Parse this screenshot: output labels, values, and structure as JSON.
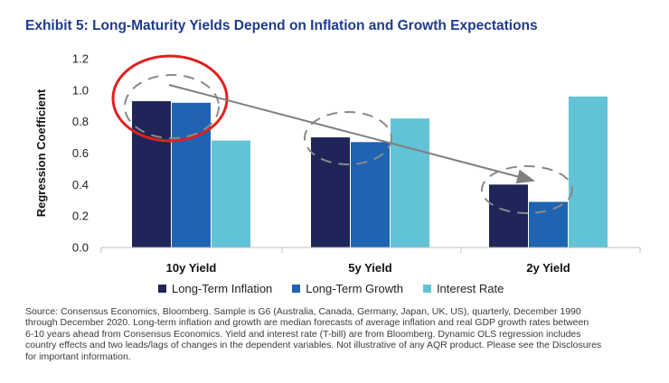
{
  "title": "Exhibit 5: Long-Maturity Yields Depend on Inflation and Growth Expectations",
  "chart_data": {
    "type": "bar",
    "categories": [
      "10y Yield",
      "5y Yield",
      "2y Yield"
    ],
    "series": [
      {
        "name": "Long-Term Inflation",
        "color": "#1f2559",
        "values": [
          0.93,
          0.7,
          0.4
        ]
      },
      {
        "name": "Long-Term Growth",
        "color": "#1f63b3",
        "values": [
          0.92,
          0.67,
          0.29
        ]
      },
      {
        "name": "Interest Rate",
        "color": "#63c3d6",
        "values": [
          0.68,
          0.82,
          0.96
        ]
      }
    ],
    "ylabel": "Regression Coefficient",
    "xlabel": "",
    "ylim": [
      0,
      1.2
    ],
    "yticks": [
      "0.0",
      "0.2",
      "0.4",
      "0.6",
      "0.8",
      "1.0",
      "1.2"
    ],
    "grid": false,
    "legend_position": "bottom",
    "annotations": [
      {
        "type": "circle",
        "color": "#e02020",
        "around": "10y Yield"
      },
      {
        "type": "dashed-ellipse",
        "color": "#808080",
        "around": [
          "10y Yield",
          "5y Yield",
          "2y Yield"
        ]
      },
      {
        "type": "arrow",
        "color": "#808080",
        "from": "10y Yield",
        "to": "2y Yield"
      }
    ]
  },
  "source_lines": [
    "Source: Consensus Economics, Bloomberg. Sample is G6 (Australia, Canada, Germany, Japan, UK, US), quarterly, December 1990",
    "through December 2020. Long-term inflation and growth are median forecasts of average inflation and real GDP growth rates between",
    "6-10 years ahead from Consensus Economics. Yield and interest rate (T-bill) are from Bloomberg. Dynamic OLS regression includes",
    "country effects and two leads/lags of changes in the dependent variables. Not illustrative of any AQR product. Please see the Disclosures",
    "for important information."
  ]
}
